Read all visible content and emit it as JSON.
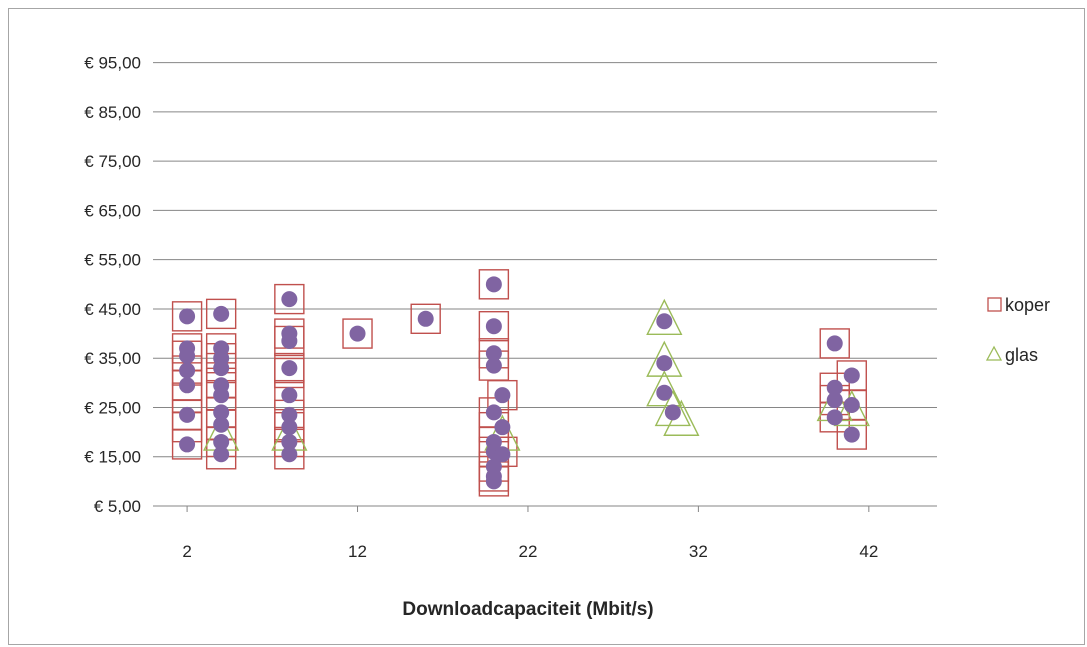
{
  "chart_data": {
    "type": "scatter",
    "xlabel": "Downloadcapaciteit (Mbit/s)",
    "ylabel": "",
    "title": "",
    "xlim": [
      0,
      46
    ],
    "ylim": [
      5,
      100
    ],
    "x_ticks": [
      2,
      12,
      22,
      32,
      42
    ],
    "y_ticks": [
      5,
      15,
      25,
      35,
      45,
      55,
      65,
      75,
      85,
      95
    ],
    "y_tick_labels": [
      "€ 5,00",
      "€ 15,00",
      "€ 25,00",
      "€ 35,00",
      "€ 45,00",
      "€ 55,00",
      "€ 65,00",
      "€ 75,00",
      "€ 85,00",
      "€ 95,00"
    ],
    "grid": true,
    "legend_position": "right",
    "colors": {
      "koper": "#c0504d",
      "glas": "#9bbb59",
      "points": "#8064a2",
      "grid": "#868686"
    },
    "series": [
      {
        "name": "koper",
        "marker": "square",
        "points": [
          [
            2,
            43.5
          ],
          [
            2,
            37
          ],
          [
            2,
            35.5
          ],
          [
            2,
            32.5
          ],
          [
            2,
            29.5
          ],
          [
            2,
            27
          ],
          [
            2,
            23.5
          ],
          [
            2,
            21
          ],
          [
            2,
            17.5
          ],
          [
            4,
            44
          ],
          [
            4,
            37
          ],
          [
            4,
            35
          ],
          [
            4,
            33
          ],
          [
            4,
            30
          ],
          [
            4,
            27.5
          ],
          [
            4,
            24
          ],
          [
            4,
            21.5
          ],
          [
            4,
            18
          ],
          [
            4,
            15.5
          ],
          [
            8,
            47
          ],
          [
            8,
            40
          ],
          [
            8,
            38.5
          ],
          [
            8,
            33
          ],
          [
            8,
            32
          ],
          [
            8,
            27.5
          ],
          [
            8,
            23.5
          ],
          [
            8,
            21
          ],
          [
            8,
            18
          ],
          [
            8,
            15.5
          ],
          [
            12,
            40
          ],
          [
            16,
            43
          ],
          [
            20,
            50
          ],
          [
            20,
            41.5
          ],
          [
            20,
            36
          ],
          [
            20,
            33.5
          ],
          [
            20,
            24
          ],
          [
            20,
            21
          ],
          [
            20,
            18
          ],
          [
            20,
            16
          ],
          [
            20,
            13
          ],
          [
            20,
            11
          ],
          [
            20,
            10
          ],
          [
            20.5,
            27.5
          ],
          [
            20.5,
            16
          ],
          [
            40,
            38
          ],
          [
            40,
            29
          ],
          [
            40,
            26.5
          ],
          [
            40,
            23
          ],
          [
            41,
            31.5
          ],
          [
            41,
            25.5
          ],
          [
            41,
            19.5
          ]
        ]
      },
      {
        "name": "glas",
        "marker": "triangle",
        "points": [
          [
            4,
            19
          ],
          [
            8,
            19
          ],
          [
            20.5,
            19
          ],
          [
            30,
            42.5
          ],
          [
            30,
            34
          ],
          [
            30,
            28
          ],
          [
            30.5,
            24
          ],
          [
            31,
            22
          ],
          [
            40,
            25
          ],
          [
            41,
            24
          ]
        ]
      }
    ],
    "point_values": [
      [
        2,
        43.5
      ],
      [
        2,
        37
      ],
      [
        2,
        35.5
      ],
      [
        2,
        32.5
      ],
      [
        2,
        29.5
      ],
      [
        2,
        23.5
      ],
      [
        2,
        17.5
      ],
      [
        4,
        44
      ],
      [
        4,
        37
      ],
      [
        4,
        35
      ],
      [
        4,
        33
      ],
      [
        4,
        29.5
      ],
      [
        4,
        27.5
      ],
      [
        4,
        24
      ],
      [
        4,
        21.5
      ],
      [
        4,
        18
      ],
      [
        4,
        15.5
      ],
      [
        8,
        47
      ],
      [
        8,
        40
      ],
      [
        8,
        38.5
      ],
      [
        8,
        33
      ],
      [
        8,
        27.5
      ],
      [
        8,
        23.5
      ],
      [
        8,
        21
      ],
      [
        8,
        18
      ],
      [
        8,
        15.5
      ],
      [
        12,
        40
      ],
      [
        16,
        43
      ],
      [
        20,
        50
      ],
      [
        20,
        41.5
      ],
      [
        20,
        36
      ],
      [
        20,
        33.5
      ],
      [
        20,
        24
      ],
      [
        20,
        18
      ],
      [
        20,
        16
      ],
      [
        20,
        13
      ],
      [
        20,
        11
      ],
      [
        20,
        10
      ],
      [
        20.5,
        27.5
      ],
      [
        20.5,
        21
      ],
      [
        20.5,
        15.5
      ],
      [
        30,
        42.5
      ],
      [
        30,
        34
      ],
      [
        30,
        28
      ],
      [
        30.5,
        24
      ],
      [
        40,
        38
      ],
      [
        40,
        29
      ],
      [
        40,
        26.5
      ],
      [
        40,
        23
      ],
      [
        41,
        31.5
      ],
      [
        41,
        25.5
      ],
      [
        41,
        19.5
      ]
    ]
  }
}
